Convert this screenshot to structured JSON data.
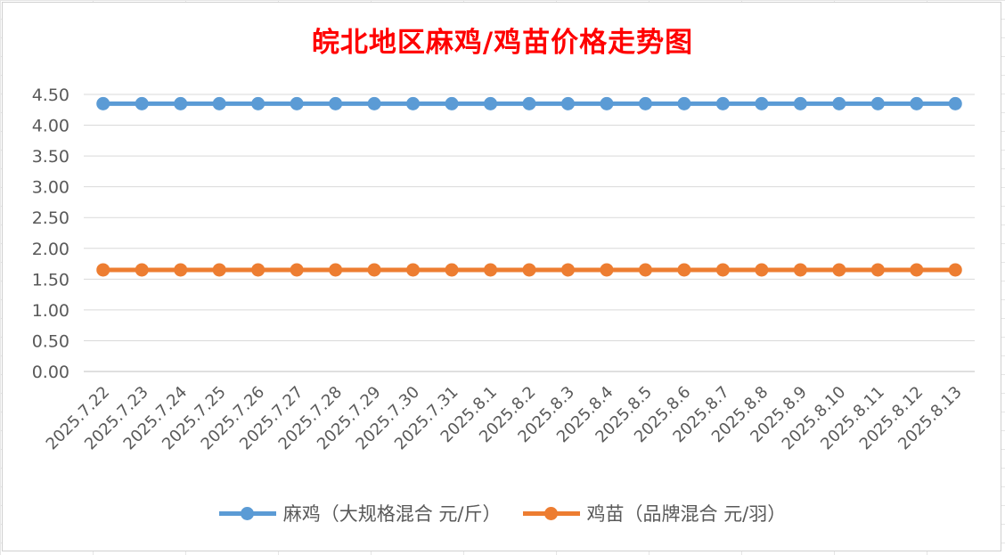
{
  "chart_data": {
    "type": "line",
    "title": "皖北地区麻鸡/鸡苗价格走势图",
    "xlabel": "",
    "ylabel": "",
    "ylim": [
      0,
      4.5
    ],
    "yticks": [
      "0.00",
      "0.50",
      "1.00",
      "1.50",
      "2.00",
      "2.50",
      "3.00",
      "3.50",
      "4.00",
      "4.50"
    ],
    "grid": true,
    "legend_position": "bottom",
    "categories": [
      "2025.7.22",
      "2025.7.23",
      "2025.7.24",
      "2025.7.25",
      "2025.7.26",
      "2025.7.27",
      "2025.7.28",
      "2025.7.29",
      "2025.7.30",
      "2025.7.31",
      "2025.8.1",
      "2025.8.2",
      "2025.8.3",
      "2025.8.4",
      "2025.8.5",
      "2025.8.6",
      "2025.8.7",
      "2025.8.8",
      "2025.8.9",
      "2025.8.10",
      "2025.8.11",
      "2025.8.12",
      "2025.8.13"
    ],
    "series": [
      {
        "name": "麻鸡（大规格混合 元/斤）",
        "color": "#5b9bd5",
        "values": [
          4.35,
          4.35,
          4.35,
          4.35,
          4.35,
          4.35,
          4.35,
          4.35,
          4.35,
          4.35,
          4.35,
          4.35,
          4.35,
          4.35,
          4.35,
          4.35,
          4.35,
          4.35,
          4.35,
          4.35,
          4.35,
          4.35,
          4.35
        ]
      },
      {
        "name": "鸡苗（品牌混合 元/羽）",
        "color": "#ed7d31",
        "values": [
          1.65,
          1.65,
          1.65,
          1.65,
          1.65,
          1.65,
          1.65,
          1.65,
          1.65,
          1.65,
          1.65,
          1.65,
          1.65,
          1.65,
          1.65,
          1.65,
          1.65,
          1.65,
          1.65,
          1.65,
          1.65,
          1.65,
          1.65
        ]
      }
    ]
  }
}
